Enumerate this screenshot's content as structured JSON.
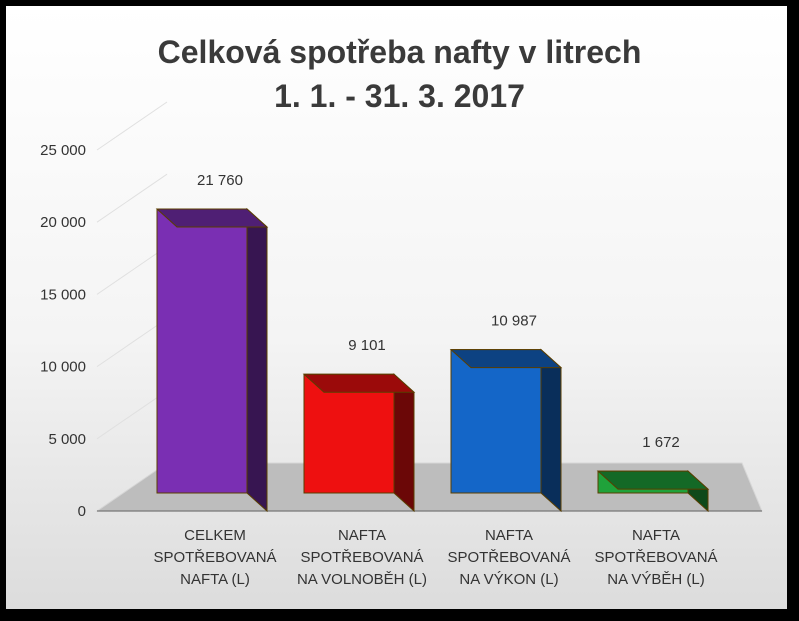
{
  "chart_data": {
    "type": "bar",
    "title_lines": [
      "Celková spotřeba nafty v litrech",
      "1. 1. - 31. 3. 2017"
    ],
    "categories": [
      [
        "CELKEM",
        "SPOTŘEBOVANÁ",
        "NAFTA (L)"
      ],
      [
        "NAFTA",
        "SPOTŘEBOVANÁ",
        "NA VOLNOBĚH (L)"
      ],
      [
        "NAFTA",
        "SPOTŘEBOVANÁ",
        "NA VÝKON (L)"
      ],
      [
        "NAFTA",
        "SPOTŘEBOVANÁ",
        "NA VÝBĚH (L)"
      ]
    ],
    "values": [
      21760,
      9101,
      10987,
      1672
    ],
    "value_labels": [
      "21 760",
      "9 101",
      "10 987",
      "1 672"
    ],
    "colors": [
      "#7a2fb3",
      "#ee1010",
      "#1466c8",
      "#1fa23a"
    ],
    "ylim": [
      0,
      25000
    ],
    "yticks": [
      0,
      5000,
      10000,
      15000,
      20000,
      25000
    ],
    "ytick_labels": [
      "0",
      "5 000",
      "10 000",
      "15 000",
      "20 000",
      "25 000"
    ],
    "grid": true,
    "legend": "none",
    "style": "3d-column"
  }
}
